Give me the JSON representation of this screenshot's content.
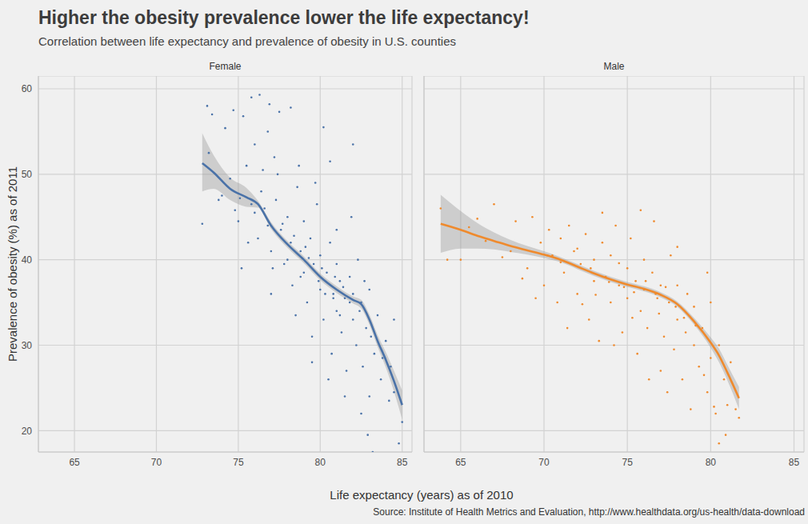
{
  "title": "Higher the obesity prevalence lower the life expectancy!",
  "subtitle": "Correlation between life expectancy and prevalence of obesity in U.S. counties",
  "x_label": "Life expectancy (years) as of 2010",
  "y_label": "Prevalence of obesity (%) as of 2011",
  "source": "Source: Institute of Health Metrics and Evaluation, http://www.healthdata.org/us-health/data-download",
  "chart_data": [
    {
      "type": "scatter",
      "title": "Female",
      "color": "#4a72a8",
      "marker": "point",
      "grid": true,
      "tick_labels": true,
      "xlim": [
        62.8,
        85.6
      ],
      "ylim": [
        17.5,
        61.5
      ],
      "xticks": [
        65,
        70,
        75,
        80,
        85
      ],
      "yticks": [
        20,
        30,
        40,
        50,
        60
      ],
      "points": [
        [
          72.8,
          44.2
        ],
        [
          73.1,
          58
        ],
        [
          73.4,
          57
        ],
        [
          74.2,
          55.4
        ],
        [
          74.7,
          57.5
        ],
        [
          75.3,
          56.8
        ],
        [
          75.8,
          59
        ],
        [
          76.3,
          59.3
        ],
        [
          76.9,
          58.2
        ],
        [
          77.5,
          57.3
        ],
        [
          78.2,
          57.8
        ],
        [
          76,
          53.5
        ],
        [
          76.8,
          55
        ],
        [
          77.2,
          52
        ],
        [
          75.5,
          51
        ],
        [
          74.5,
          49.5
        ],
        [
          74,
          47.5
        ],
        [
          73.8,
          47
        ],
        [
          75,
          44.5
        ],
        [
          75.2,
          39
        ],
        [
          75.6,
          42
        ],
        [
          76,
          45.5
        ],
        [
          76.4,
          48
        ],
        [
          76.8,
          44
        ],
        [
          77,
          41
        ],
        [
          77,
          36
        ],
        [
          77.3,
          47
        ],
        [
          77.6,
          43.5
        ],
        [
          77.8,
          39.5
        ],
        [
          78,
          45
        ],
        [
          78.2,
          42
        ],
        [
          78.3,
          37
        ],
        [
          78.5,
          33.5
        ],
        [
          78.6,
          48.5
        ],
        [
          78.8,
          41
        ],
        [
          79,
          44.5
        ],
        [
          79,
          38.5
        ],
        [
          79.2,
          35
        ],
        [
          79.4,
          42.5
        ],
        [
          79.5,
          31
        ],
        [
          79.6,
          39.5
        ],
        [
          79.8,
          46.5
        ],
        [
          80,
          40.5
        ],
        [
          80,
          36.5
        ],
        [
          80.2,
          33
        ],
        [
          80.2,
          55.5
        ],
        [
          80.4,
          38.5
        ],
        [
          80.6,
          42
        ],
        [
          80.7,
          29
        ],
        [
          80.8,
          36
        ],
        [
          81,
          39.5
        ],
        [
          81,
          34
        ],
        [
          81.2,
          37.5
        ],
        [
          81.3,
          31.5
        ],
        [
          81.5,
          35.5
        ],
        [
          81.6,
          27
        ],
        [
          81.8,
          38
        ],
        [
          82,
          36
        ],
        [
          82,
          33
        ],
        [
          82.2,
          30
        ],
        [
          82.3,
          40
        ],
        [
          82.5,
          35
        ],
        [
          82.6,
          27.5
        ],
        [
          82.8,
          32
        ],
        [
          83,
          24
        ],
        [
          83,
          36.5
        ],
        [
          83.3,
          29
        ],
        [
          83.5,
          33.5
        ],
        [
          83.7,
          26
        ],
        [
          84,
          30.5
        ],
        [
          84.2,
          23.5
        ],
        [
          84.5,
          33
        ],
        [
          84.8,
          18.5
        ],
        [
          85,
          21
        ],
        [
          83.2,
          17.5
        ],
        [
          82.9,
          19.5
        ],
        [
          82.5,
          22
        ],
        [
          81.5,
          24
        ],
        [
          80.5,
          26
        ],
        [
          79.5,
          28
        ],
        [
          81,
          43.5
        ],
        [
          82,
          53.5
        ],
        [
          79.7,
          49
        ],
        [
          78.7,
          51
        ],
        [
          77.4,
          50
        ],
        [
          76.5,
          50.5
        ],
        [
          75.8,
          46.5
        ],
        [
          74.8,
          45.8
        ],
        [
          73.2,
          52.5
        ],
        [
          76.2,
          42.5
        ],
        [
          77.1,
          39
        ],
        [
          78,
          40
        ],
        [
          78.8,
          38
        ],
        [
          79.3,
          40.2
        ],
        [
          79.9,
          37.5
        ],
        [
          80.3,
          36
        ],
        [
          80.8,
          35.5
        ],
        [
          81.4,
          36.8
        ],
        [
          81.8,
          35
        ],
        [
          82.4,
          34
        ],
        [
          83.1,
          31
        ],
        [
          83.8,
          28.5
        ],
        [
          84.3,
          27.5
        ],
        [
          76.6,
          46
        ],
        [
          77.7,
          44.2
        ],
        [
          78.4,
          42.8
        ],
        [
          79.1,
          41.5
        ],
        [
          80.1,
          39
        ],
        [
          80.9,
          38
        ],
        [
          81.2,
          33.5
        ],
        [
          82.7,
          37.5
        ],
        [
          84.5,
          24.5
        ],
        [
          75.1,
          47.2
        ],
        [
          80.6,
          51.5
        ],
        [
          81.9,
          45
        ]
      ],
      "fit": {
        "line_style": "solid",
        "x": [
          72.8,
          73.5,
          74.5,
          75.5,
          76.2,
          77,
          78,
          79,
          80,
          81,
          82,
          82.5,
          83,
          83.5,
          84,
          84.5,
          85
        ],
        "y": [
          51.3,
          50.2,
          48.3,
          47.3,
          46.5,
          44,
          41.8,
          40,
          38,
          36.5,
          35.3,
          34.8,
          33,
          30.5,
          28.3,
          25.8,
          23
        ],
        "lower": [
          48,
          48.3,
          47,
          46.2,
          46.1,
          43.6,
          41.4,
          39.6,
          37.6,
          36.1,
          34.9,
          34.3,
          32.4,
          29.8,
          27.4,
          24.6,
          21.3
        ],
        "upper": [
          54.8,
          52.2,
          49.6,
          48.4,
          46.9,
          44.4,
          42.2,
          40.4,
          38.4,
          36.9,
          35.7,
          35.3,
          33.6,
          31.2,
          29.2,
          27,
          24.7
        ]
      }
    },
    {
      "type": "scatter",
      "title": "Male",
      "color": "#ef8a2d",
      "marker": "point",
      "grid": true,
      "tick_labels": "x",
      "xlim": [
        62.8,
        85.6
      ],
      "ylim": [
        17.5,
        61.5
      ],
      "xticks": [
        65,
        70,
        75,
        80,
        85
      ],
      "yticks": [
        20,
        30,
        40,
        50,
        60
      ],
      "points": [
        [
          63.8,
          46
        ],
        [
          64.2,
          40
        ],
        [
          65.5,
          43.8
        ],
        [
          67,
          46.5
        ],
        [
          68,
          41
        ],
        [
          68.3,
          44.5
        ],
        [
          69,
          39
        ],
        [
          69.3,
          45
        ],
        [
          69.8,
          42
        ],
        [
          70,
          37
        ],
        [
          70.3,
          43.5
        ],
        [
          70.5,
          40.5
        ],
        [
          70.8,
          35
        ],
        [
          71,
          42.5
        ],
        [
          71.2,
          38.5
        ],
        [
          71.5,
          44
        ],
        [
          71.8,
          41
        ],
        [
          72,
          36
        ],
        [
          72.2,
          39.5
        ],
        [
          72.5,
          43
        ],
        [
          72.7,
          33
        ],
        [
          73,
          40
        ],
        [
          73,
          37.5
        ],
        [
          73.3,
          30.5
        ],
        [
          73.5,
          42
        ],
        [
          73.7,
          38
        ],
        [
          74,
          35
        ],
        [
          74,
          40.5
        ],
        [
          74.3,
          44
        ],
        [
          74.5,
          37
        ],
        [
          74.7,
          31.5
        ],
        [
          75,
          39
        ],
        [
          75,
          35.5
        ],
        [
          75.2,
          42.5
        ],
        [
          75.5,
          37.5
        ],
        [
          75.6,
          29
        ],
        [
          75.8,
          34
        ],
        [
          76,
          40
        ],
        [
          76,
          36.5
        ],
        [
          76.2,
          32
        ],
        [
          76.5,
          38.5
        ],
        [
          76.6,
          44.5
        ],
        [
          76.8,
          35.5
        ],
        [
          77,
          37
        ],
        [
          77,
          27
        ],
        [
          77.2,
          31
        ],
        [
          77.5,
          35
        ],
        [
          77.6,
          40.5
        ],
        [
          77.8,
          29.5
        ],
        [
          78,
          33
        ],
        [
          78,
          37
        ],
        [
          78.3,
          26
        ],
        [
          78.5,
          31.5
        ],
        [
          78.6,
          36
        ],
        [
          78.8,
          22.5
        ],
        [
          79,
          30
        ],
        [
          79,
          34.5
        ],
        [
          79.3,
          27.5
        ],
        [
          79.5,
          32
        ],
        [
          79.8,
          24.5
        ],
        [
          80,
          28.5
        ],
        [
          80,
          35
        ],
        [
          80.3,
          22
        ],
        [
          80.5,
          30
        ],
        [
          80.8,
          26
        ],
        [
          81,
          23
        ],
        [
          81.2,
          28
        ],
        [
          81.5,
          22.5
        ],
        [
          81.7,
          21.5
        ],
        [
          80.9,
          19.5
        ],
        [
          80.5,
          18.5
        ],
        [
          80.2,
          22.8
        ],
        [
          79.6,
          26.5
        ],
        [
          77.4,
          24.5
        ],
        [
          76.3,
          26
        ],
        [
          74.2,
          30
        ],
        [
          72.3,
          34.8
        ],
        [
          71.4,
          32
        ],
        [
          69.5,
          35.5
        ],
        [
          68.7,
          37.8
        ],
        [
          66.5,
          42.2
        ],
        [
          67.5,
          40.3
        ],
        [
          66,
          44.8
        ],
        [
          65,
          40
        ],
        [
          70.2,
          40.5
        ],
        [
          72.8,
          39
        ],
        [
          73.9,
          37.4
        ],
        [
          74.8,
          36.8
        ],
        [
          75.4,
          36.2
        ],
        [
          76.1,
          37.5
        ],
        [
          76.7,
          36
        ],
        [
          77.3,
          36.8
        ],
        [
          77.9,
          34.5
        ],
        [
          78.4,
          33.2
        ],
        [
          79.1,
          32.3
        ],
        [
          72,
          41.3
        ],
        [
          71,
          39.7
        ],
        [
          73.5,
          45.5
        ],
        [
          75.8,
          45.8
        ],
        [
          78,
          41.5
        ],
        [
          76.9,
          33.7
        ],
        [
          74.5,
          39.6
        ],
        [
          73.1,
          35.9
        ],
        [
          75.3,
          33.2
        ],
        [
          79.8,
          38.5
        ]
      ],
      "fit": {
        "line_style": "solid",
        "x": [
          63.8,
          65,
          66,
          67,
          68,
          69,
          70,
          71,
          72,
          73,
          74,
          75,
          76,
          77,
          78,
          79,
          80,
          80.5,
          81,
          81.7
        ],
        "y": [
          44.2,
          43.5,
          42.8,
          42.2,
          41.6,
          41.1,
          40.6,
          40,
          39.2,
          38.4,
          37.7,
          37.1,
          36.6,
          35.9,
          34.8,
          32.8,
          30.3,
          28.8,
          26.8,
          23.8
        ],
        "lower": [
          40.8,
          41.3,
          41.3,
          41.2,
          40.9,
          40.6,
          40.2,
          39.7,
          38.9,
          38.1,
          37.4,
          36.8,
          36.3,
          35.6,
          34.5,
          32.4,
          29.7,
          28,
          25.9,
          22.5
        ],
        "upper": [
          47.6,
          45.7,
          44.3,
          43.2,
          42.3,
          41.6,
          41,
          40.3,
          39.5,
          38.7,
          38,
          37.4,
          36.9,
          36.2,
          35.1,
          33.2,
          30.9,
          29.6,
          27.7,
          25.1
        ]
      }
    }
  ]
}
